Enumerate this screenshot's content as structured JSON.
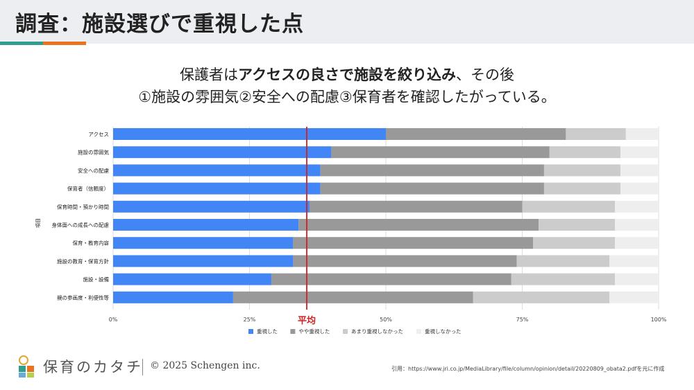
{
  "header": {
    "title": "調査：施設選びで重視した点"
  },
  "headline": {
    "line1_pre": "保護者は",
    "line1_bold": "アクセスの良さで施設を絞り込み",
    "line1_post": "、その後",
    "line2": "①施設の雰囲気②安全への配慮③保育者を確認したがっている。"
  },
  "chart_data": {
    "type": "bar",
    "orientation": "horizontal",
    "stacked": true,
    "categories": [
      "アクセス",
      "施設の雰囲気",
      "安全への配慮",
      "保育者（信頼度）",
      "保育時間・預かり時間",
      "身体面への成長への配慮",
      "保育・教育内容",
      "施設の教育・保育方針",
      "施設・設備",
      "親の参画度・利便性等"
    ],
    "series": [
      {
        "name": "重視した",
        "color": "#4285f4",
        "values": [
          50,
          40,
          38,
          38,
          36,
          34,
          33,
          33,
          29,
          22
        ]
      },
      {
        "name": "やや重視した",
        "color": "#999999",
        "values": [
          33,
          40,
          41,
          41,
          39,
          44,
          44,
          41,
          44,
          44
        ]
      },
      {
        "name": "あまり重視しなかった",
        "color": "#cccccc",
        "values": [
          11,
          13,
          14,
          14,
          17,
          14,
          15,
          17,
          19,
          25
        ]
      },
      {
        "name": "重視しなかった",
        "color": "#eeeeee",
        "values": [
          6,
          7,
          7,
          7,
          8,
          8,
          8,
          9,
          8,
          9
        ]
      }
    ],
    "xlim": [
      0,
      100
    ],
    "xticks": [
      "0%",
      "25%",
      "50%",
      "75%",
      "100%"
    ],
    "ylabel": "項目",
    "grid": true,
    "legend": "bottom",
    "reference_line": {
      "value": 35.5,
      "label": "平均",
      "color": "#cc2222"
    }
  },
  "footer": {
    "brand": "保育のカタチ",
    "copyright": "© 2025 Schengen inc.",
    "source": "引用：https://www.jri.co.jp/MediaLibrary/file/column/opinion/detail/20220809_obata2.pdfを元に作成"
  }
}
